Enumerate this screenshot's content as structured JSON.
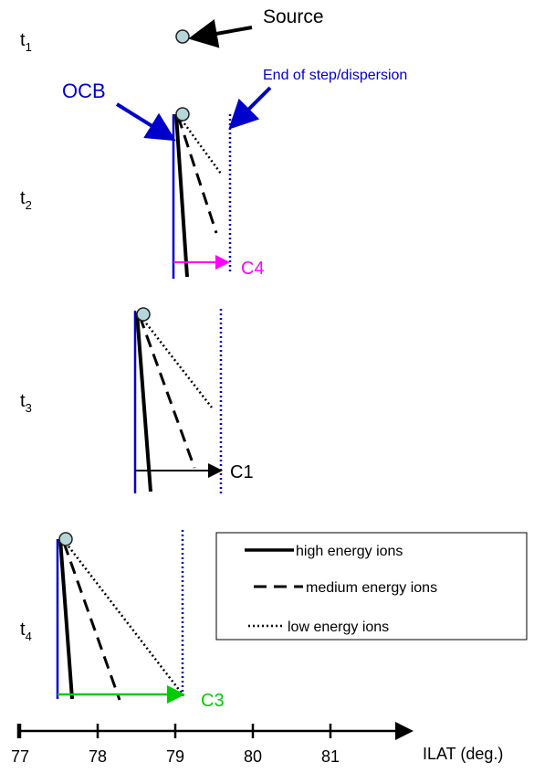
{
  "source_label": "Source",
  "ocb_label": "OCB",
  "dispersion_label": "End of step/dispersion",
  "times": [
    {
      "label": "t",
      "sub": "1"
    },
    {
      "label": "t",
      "sub": "2"
    },
    {
      "label": "t",
      "sub": "3"
    },
    {
      "label": "t",
      "sub": "4"
    }
  ],
  "panel_labels": [
    "C4",
    "C1",
    "C3"
  ],
  "legend": [
    "high energy ions",
    "medium energy ions",
    "low energy ions"
  ],
  "axis": {
    "label": "ILAT (deg.)",
    "ticks": [
      77,
      78,
      79,
      80,
      81
    ]
  }
}
